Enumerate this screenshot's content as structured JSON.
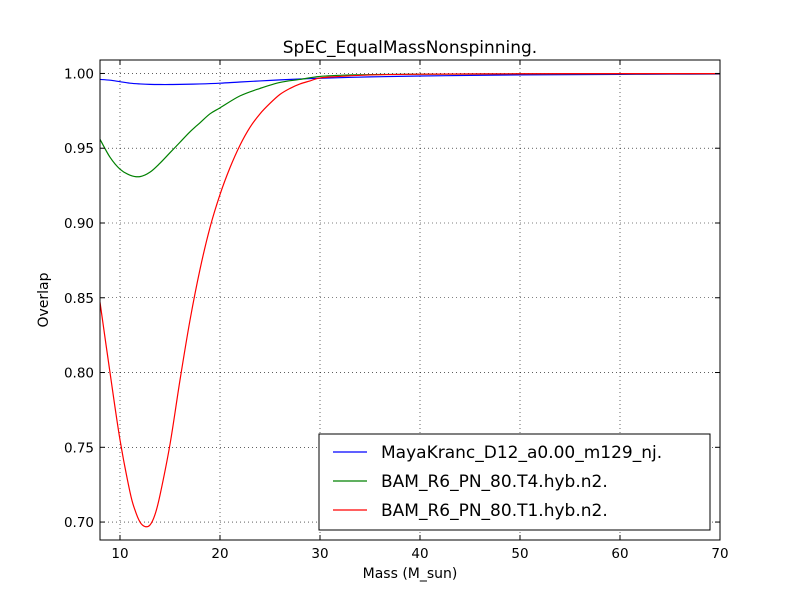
{
  "chart_data": {
    "type": "line",
    "title": "SpEC_EqualMassNonspinning.",
    "xlabel": "Mass (M_sun)",
    "ylabel": "Overlap",
    "xlim": [
      8,
      70
    ],
    "ylim": [
      0.688,
      1.009
    ],
    "xticks": [
      10,
      20,
      30,
      40,
      50,
      60,
      70
    ],
    "yticks": [
      0.7,
      0.75,
      0.8,
      0.85,
      0.9,
      0.95,
      1.0
    ],
    "grid": true,
    "legend_position": "lower-right",
    "series": [
      {
        "name": "MayaKranc_D12_a0.00_m129_nj.",
        "color": "#0000ff",
        "x": [
          8,
          9,
          10,
          11,
          12,
          13,
          14,
          15,
          16,
          18,
          20,
          22,
          24,
          26,
          28,
          30,
          35,
          40,
          45,
          50,
          55,
          60,
          65,
          70
        ],
        "y": [
          0.996,
          0.9955,
          0.9945,
          0.9935,
          0.993,
          0.9927,
          0.9926,
          0.9926,
          0.9927,
          0.993,
          0.9935,
          0.9943,
          0.995,
          0.9957,
          0.9963,
          0.9968,
          0.9977,
          0.9983,
          0.9987,
          0.999,
          0.9992,
          0.9994,
          0.9995,
          0.9996
        ]
      },
      {
        "name": "BAM_R6_PN_80.T4.hyb.n2.",
        "color": "#008000",
        "x": [
          8,
          9,
          10,
          11,
          12,
          13,
          14,
          15,
          16,
          17,
          18,
          19,
          20,
          22,
          24,
          26,
          28,
          30,
          33,
          36,
          40,
          50,
          60,
          70
        ],
        "y": [
          0.956,
          0.944,
          0.936,
          0.932,
          0.931,
          0.934,
          0.94,
          0.947,
          0.954,
          0.961,
          0.967,
          0.973,
          0.977,
          0.985,
          0.99,
          0.994,
          0.996,
          0.998,
          0.999,
          0.9993,
          0.9995,
          0.9997,
          0.9998,
          0.9999
        ]
      },
      {
        "name": "BAM_R6_PN_80.T1.hyb.n2.",
        "color": "#ff0000",
        "x": [
          8,
          9,
          10,
          11,
          11.5,
          12,
          12.5,
          13,
          13.5,
          14,
          15,
          16,
          17,
          18,
          19,
          20,
          21,
          22,
          23,
          24,
          25,
          26,
          27,
          28,
          29,
          30,
          32,
          35,
          40,
          50,
          60,
          70
        ],
        "y": [
          0.847,
          0.8,
          0.755,
          0.72,
          0.708,
          0.7,
          0.697,
          0.698,
          0.705,
          0.718,
          0.752,
          0.795,
          0.835,
          0.869,
          0.897,
          0.919,
          0.937,
          0.952,
          0.964,
          0.973,
          0.98,
          0.986,
          0.99,
          0.993,
          0.995,
          0.997,
          0.998,
          0.999,
          0.9995,
          0.9998,
          0.9999,
          0.9999
        ]
      }
    ]
  }
}
